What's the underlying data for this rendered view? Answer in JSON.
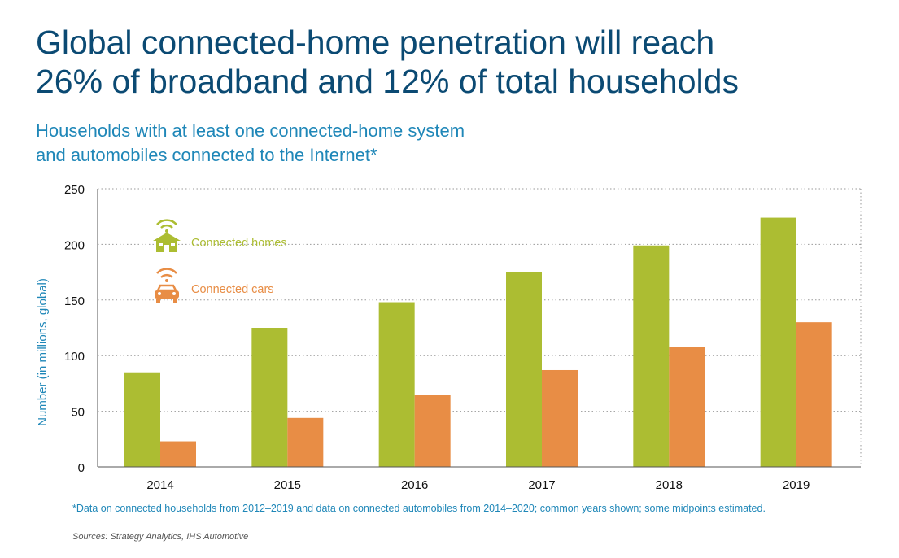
{
  "heading": {
    "line1": "Global connected-home penetration will reach",
    "line2": "26% of broadband and 12% of total households"
  },
  "subheading": {
    "line1": "Households with at least one connected-home system",
    "line2": "and automobiles connected to the Internet*"
  },
  "colors": {
    "homes": "#acbd32",
    "cars": "#e88d45",
    "title": "#0b4a73",
    "accent": "#1f87b8"
  },
  "chart_data": {
    "type": "bar",
    "categories": [
      "2014",
      "2015",
      "2016",
      "2017",
      "2018",
      "2019"
    ],
    "series": [
      {
        "name": "Connected homes",
        "icon": "house-wifi-icon",
        "values": [
          85,
          125,
          148,
          175,
          199,
          224
        ]
      },
      {
        "name": "Connected cars",
        "icon": "car-wifi-icon",
        "values": [
          23,
          44,
          65,
          87,
          108,
          130
        ]
      }
    ],
    "ylabel": "Number (in millions, global)",
    "xlabel": "",
    "ylim": [
      0,
      250
    ],
    "yticks": [
      0,
      50,
      100,
      150,
      200,
      250
    ],
    "grid": true,
    "legend": "top-left"
  },
  "footnote": "*Data on connected households from 2012–2019 and data on connected automobiles from 2014–2020; common years shown; some midpoints estimated.",
  "sources": "Sources: Strategy Analytics, IHS Automotive"
}
